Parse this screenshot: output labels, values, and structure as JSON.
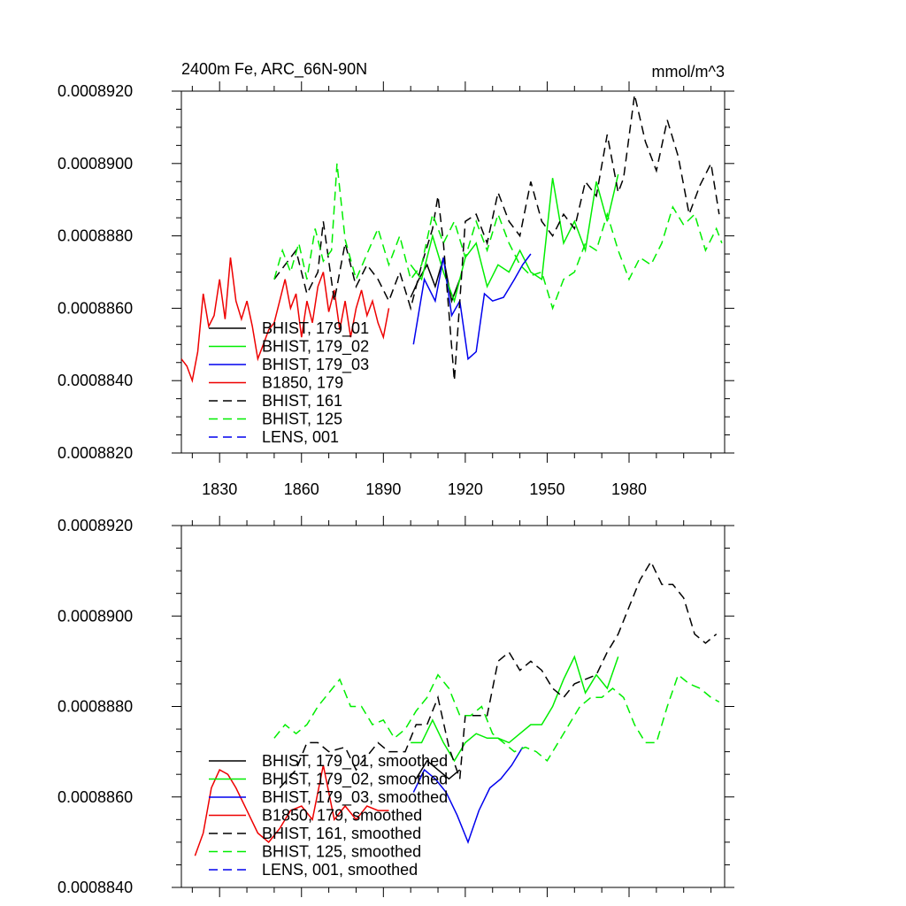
{
  "chart_data": [
    {
      "type": "line",
      "title_left": "2400m Fe, ARC_66N-90N",
      "title_right": "mmol/m^3",
      "xlim": [
        1816,
        2015
      ],
      "ylim": [
        0.000882,
        0.000892
      ],
      "xticks": [
        1830,
        1860,
        1890,
        1920,
        1950,
        1980
      ],
      "xtick_labels": [
        "1830",
        "1860",
        "1890",
        "1920",
        "1950",
        "1980"
      ],
      "yticks": [
        0.000882,
        0.000884,
        0.000886,
        0.000888,
        0.00089,
        0.000892
      ],
      "ytick_labels": [
        "0.0008820",
        "0.0008840",
        "0.0008860",
        "0.0008880",
        "0.0008900",
        "0.0008920"
      ],
      "legend_position": "bottom-left",
      "series": [
        {
          "name": "BHIST, 179_01",
          "color": "#000000",
          "dash": "solid",
          "x": [
            1900,
            1903,
            1906,
            1909,
            1912,
            1915,
            1918
          ],
          "values": [
            0.0008863,
            0.0008868,
            0.0008872,
            0.0008866,
            0.0008874,
            0.0008862,
            0.0008868
          ]
        },
        {
          "name": "BHIST, 179_02",
          "color": "#00ee00",
          "dash": "solid",
          "x": [
            1900,
            1904,
            1908,
            1912,
            1916,
            1920,
            1924,
            1928,
            1932,
            1936,
            1940,
            1944,
            1948,
            1952,
            1956,
            1960,
            1964,
            1968,
            1972,
            1976
          ],
          "values": [
            0.0008872,
            0.0008868,
            0.000888,
            0.000887,
            0.0008862,
            0.0008874,
            0.0008878,
            0.0008866,
            0.0008872,
            0.000887,
            0.0008876,
            0.000887,
            0.0008868,
            0.0008896,
            0.0008878,
            0.0008884,
            0.0008876,
            0.0008895,
            0.0008884,
            0.0008897
          ]
        },
        {
          "name": "BHIST, 179_03",
          "color": "#0000ee",
          "dash": "solid",
          "x": [
            1901,
            1905,
            1909,
            1912,
            1915,
            1918,
            1921,
            1924,
            1927,
            1930,
            1934,
            1938,
            1941,
            1944
          ],
          "values": [
            0.000885,
            0.0008868,
            0.0008862,
            0.0008874,
            0.0008858,
            0.0008862,
            0.0008846,
            0.0008848,
            0.0008864,
            0.0008862,
            0.0008863,
            0.0008868,
            0.0008872,
            0.0008875
          ]
        },
        {
          "name": "B1850, 179",
          "color": "#ee0000",
          "dash": "solid",
          "x": [
            1816,
            1818,
            1820,
            1822,
            1824,
            1826,
            1828,
            1830,
            1832,
            1834,
            1836,
            1838,
            1840,
            1842,
            1844,
            1846,
            1848,
            1850,
            1852,
            1854,
            1856,
            1858,
            1860,
            1862,
            1864,
            1866,
            1868,
            1870,
            1872,
            1874,
            1876,
            1878,
            1880,
            1882,
            1884,
            1886,
            1888,
            1890,
            1892
          ],
          "values": [
            0.0008846,
            0.0008844,
            0.000884,
            0.0008848,
            0.0008864,
            0.0008855,
            0.0008858,
            0.0008868,
            0.0008857,
            0.0008874,
            0.0008862,
            0.0008857,
            0.0008862,
            0.0008855,
            0.0008846,
            0.000885,
            0.0008854,
            0.0008856,
            0.0008862,
            0.0008868,
            0.000886,
            0.0008864,
            0.0008852,
            0.0008862,
            0.0008856,
            0.0008866,
            0.000887,
            0.0008859,
            0.0008865,
            0.0008854,
            0.0008862,
            0.0008852,
            0.000886,
            0.0008865,
            0.0008858,
            0.0008862,
            0.0008856,
            0.0008852,
            0.000886
          ]
        },
        {
          "name": "BHIST, 161",
          "color": "#000000",
          "dash": "dashed",
          "x": [
            1850,
            1854,
            1858,
            1862,
            1866,
            1868,
            1872,
            1876,
            1880,
            1884,
            1888,
            1892,
            1896,
            1900,
            1904,
            1908,
            1910,
            1912,
            1916,
            1920,
            1924,
            1928,
            1932,
            1936,
            1940,
            1944,
            1948,
            1952,
            1956,
            1960,
            1964,
            1968,
            1972,
            1976,
            1978,
            1982,
            1986,
            1990,
            1994,
            1998,
            2002,
            2006,
            2010,
            2013
          ],
          "values": [
            0.0008868,
            0.0008872,
            0.0008876,
            0.0008864,
            0.000887,
            0.0008884,
            0.0008862,
            0.0008878,
            0.0008866,
            0.0008872,
            0.0008868,
            0.0008862,
            0.000887,
            0.000886,
            0.0008872,
            0.0008882,
            0.0008891,
            0.0008878,
            0.000884,
            0.0008884,
            0.0008886,
            0.0008878,
            0.0008892,
            0.0008884,
            0.000888,
            0.0008895,
            0.0008884,
            0.000888,
            0.0008886,
            0.0008882,
            0.0008895,
            0.0008891,
            0.0008908,
            0.0008892,
            0.0008896,
            0.0008919,
            0.0008906,
            0.0008898,
            0.0008912,
            0.0008902,
            0.0008886,
            0.0008894,
            0.00089,
            0.0008886
          ]
        },
        {
          "name": "BHIST, 125",
          "color": "#00ee00",
          "dash": "dashed",
          "x": [
            1850,
            1853,
            1856,
            1859,
            1862,
            1865,
            1868,
            1871,
            1873,
            1876,
            1880,
            1884,
            1888,
            1892,
            1896,
            1900,
            1904,
            1908,
            1912,
            1916,
            1920,
            1924,
            1928,
            1932,
            1936,
            1940,
            1944,
            1948,
            1952,
            1956,
            1960,
            1964,
            1968,
            1972,
            1976,
            1980,
            1984,
            1988,
            1992,
            1996,
            2000,
            2004,
            2008,
            2012,
            2014
          ],
          "values": [
            0.0008868,
            0.0008876,
            0.000887,
            0.0008878,
            0.0008868,
            0.0008882,
            0.0008873,
            0.0008876,
            0.00089,
            0.0008879,
            0.0008868,
            0.0008875,
            0.0008882,
            0.0008872,
            0.000888,
            0.0008868,
            0.0008872,
            0.0008886,
            0.0008878,
            0.0008884,
            0.0008874,
            0.0008884,
            0.0008876,
            0.0008886,
            0.0008878,
            0.0008872,
            0.0008869,
            0.000887,
            0.000886,
            0.0008868,
            0.000887,
            0.0008878,
            0.0008876,
            0.0008886,
            0.0008876,
            0.0008868,
            0.0008874,
            0.0008872,
            0.0008878,
            0.0008888,
            0.0008883,
            0.0008886,
            0.0008876,
            0.0008882,
            0.0008878
          ]
        },
        {
          "name": "LENS, 001",
          "color": "#0000ee",
          "dash": "dashed",
          "x": [],
          "values": []
        }
      ]
    },
    {
      "type": "line",
      "xlim": [
        1816,
        2015
      ],
      "ylim": [
        0.000884,
        0.000892
      ],
      "xticks": [
        1830,
        1860,
        1890,
        1920,
        1950,
        1980
      ],
      "yticks": [
        0.000884,
        0.000886,
        0.000888,
        0.00089,
        0.000892
      ],
      "ytick_labels": [
        "0.0008840",
        "0.0008860",
        "0.0008880",
        "0.0008900",
        "0.0008920"
      ],
      "legend_position": "bottom-left",
      "series": [
        {
          "name": "BHIST, 179_01, smoothed",
          "color": "#000000",
          "dash": "solid",
          "x": [
            1902,
            1906,
            1910,
            1914,
            1918
          ],
          "values": [
            0.0008864,
            0.0008868,
            0.0008866,
            0.0008864,
            0.0008866
          ]
        },
        {
          "name": "BHIST, 179_02, smoothed",
          "color": "#00ee00",
          "dash": "solid",
          "x": [
            1900,
            1904,
            1908,
            1912,
            1916,
            1920,
            1924,
            1928,
            1932,
            1936,
            1940,
            1944,
            1948,
            1952,
            1956,
            1960,
            1964,
            1968,
            1972,
            1976
          ],
          "values": [
            0.0008872,
            0.0008872,
            0.0008877,
            0.0008872,
            0.0008868,
            0.0008872,
            0.0008874,
            0.0008873,
            0.0008873,
            0.0008872,
            0.0008874,
            0.0008876,
            0.0008876,
            0.000888,
            0.0008886,
            0.0008891,
            0.0008883,
            0.0008887,
            0.0008884,
            0.0008891
          ]
        },
        {
          "name": "BHIST, 179_03, smoothed",
          "color": "#0000ee",
          "dash": "solid",
          "x": [
            1901,
            1905,
            1909,
            1913,
            1917,
            1921,
            1925,
            1929,
            1933,
            1937,
            1941
          ],
          "values": [
            0.0008861,
            0.0008866,
            0.0008864,
            0.0008861,
            0.0008856,
            0.000885,
            0.0008857,
            0.0008862,
            0.0008864,
            0.0008867,
            0.0008871
          ]
        },
        {
          "name": "B1850, 179, smoothed",
          "color": "#ee0000",
          "dash": "solid",
          "x": [
            1821,
            1824,
            1827,
            1830,
            1833,
            1836,
            1840,
            1844,
            1848,
            1852,
            1856,
            1860,
            1864,
            1868,
            1872,
            1876,
            1880,
            1884,
            1888,
            1892
          ],
          "values": [
            0.0008847,
            0.0008852,
            0.0008862,
            0.0008866,
            0.0008865,
            0.0008862,
            0.0008857,
            0.0008852,
            0.000885,
            0.0008853,
            0.0008857,
            0.0008858,
            0.0008855,
            0.0008867,
            0.0008855,
            0.0008858,
            0.0008855,
            0.0008858,
            0.0008857,
            0.0008857
          ]
        },
        {
          "name": "BHIST, 161, smoothed",
          "color": "#000000",
          "dash": "dashed",
          "x": [
            1852,
            1858,
            1862,
            1866,
            1870,
            1876,
            1880,
            1884,
            1888,
            1892,
            1898,
            1902,
            1906,
            1910,
            1914,
            1918,
            1920,
            1924,
            1928,
            1932,
            1936,
            1940,
            1944,
            1948,
            1952,
            1956,
            1960,
            1964,
            1968,
            1972,
            1976,
            1980,
            1984,
            1988,
            1992,
            1996,
            2000,
            2004,
            2008,
            2012
          ],
          "values": [
            0.0008862,
            0.0008866,
            0.0008872,
            0.0008872,
            0.000887,
            0.0008871,
            0.0008866,
            0.0008869,
            0.0008872,
            0.000887,
            0.000887,
            0.0008876,
            0.0008876,
            0.0008882,
            0.0008871,
            0.0008864,
            0.0008878,
            0.0008878,
            0.0008878,
            0.000889,
            0.0008892,
            0.0008888,
            0.000889,
            0.0008888,
            0.0008884,
            0.0008882,
            0.0008885,
            0.0008886,
            0.0008887,
            0.0008892,
            0.0008896,
            0.0008902,
            0.0008908,
            0.0008912,
            0.0008907,
            0.0008907,
            0.0008904,
            0.0008896,
            0.0008894,
            0.0008896
          ]
        },
        {
          "name": "BHIST, 125, smoothed",
          "color": "#00ee00",
          "dash": "dashed",
          "x": [
            1850,
            1854,
            1858,
            1862,
            1866,
            1870,
            1874,
            1878,
            1882,
            1886,
            1890,
            1894,
            1898,
            1902,
            1906,
            1910,
            1914,
            1918,
            1922,
            1926,
            1930,
            1934,
            1938,
            1942,
            1946,
            1950,
            1954,
            1958,
            1962,
            1966,
            1970,
            1974,
            1978,
            1982,
            1986,
            1990,
            1994,
            1998,
            2002,
            2006,
            2010,
            2013
          ],
          "values": [
            0.0008873,
            0.0008876,
            0.0008874,
            0.0008876,
            0.000888,
            0.0008883,
            0.0008886,
            0.000888,
            0.000888,
            0.0008876,
            0.0008877,
            0.0008873,
            0.0008875,
            0.0008879,
            0.0008882,
            0.0008887,
            0.0008884,
            0.0008878,
            0.0008878,
            0.000888,
            0.0008874,
            0.0008872,
            0.000887,
            0.0008871,
            0.000887,
            0.0008868,
            0.0008872,
            0.0008876,
            0.000888,
            0.0008882,
            0.0008882,
            0.0008884,
            0.0008882,
            0.0008876,
            0.0008872,
            0.0008872,
            0.000888,
            0.0008887,
            0.0008885,
            0.0008884,
            0.0008882,
            0.0008881
          ]
        },
        {
          "name": "LENS, 001, smoothed",
          "color": "#0000ee",
          "dash": "dashed",
          "x": [],
          "values": []
        }
      ]
    }
  ]
}
